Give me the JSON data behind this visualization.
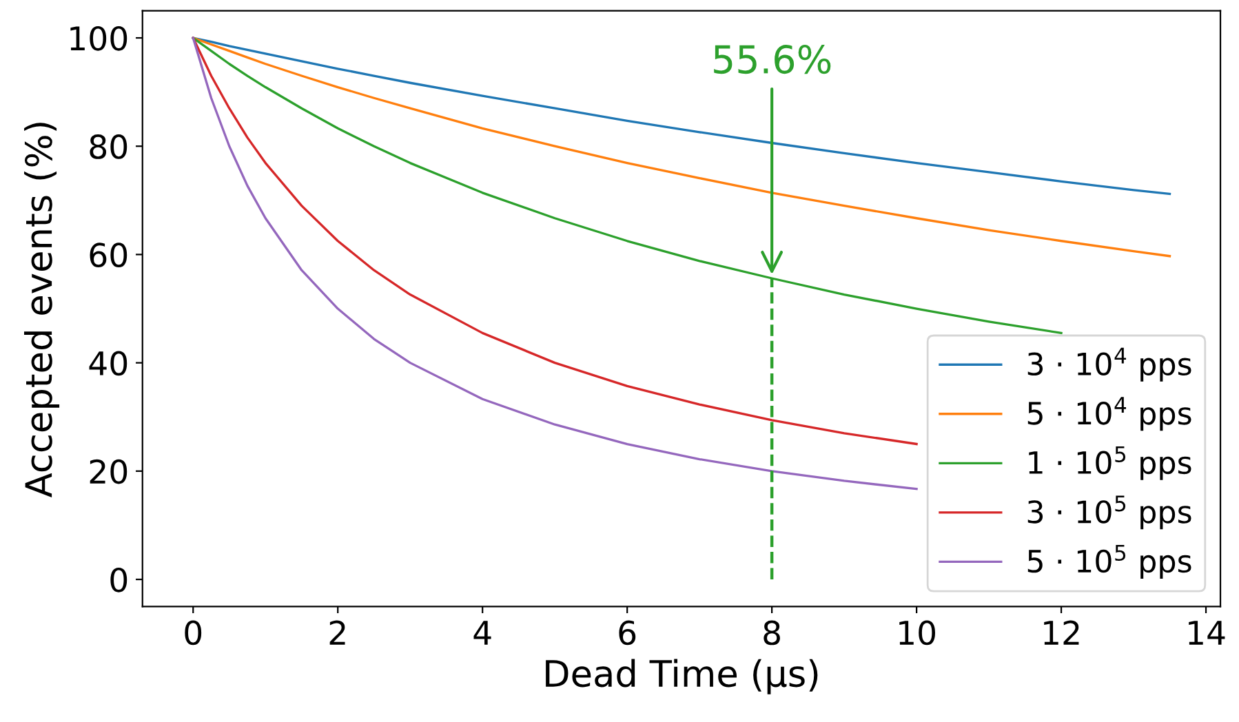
{
  "chart_data": {
    "type": "line",
    "xlabel": "Dead Time (µs)",
    "ylabel": "Accepted events (%)",
    "x": [
      0,
      0.25,
      0.5,
      0.75,
      1,
      1.5,
      2,
      2.5,
      3,
      4,
      5,
      6,
      7,
      8,
      9,
      10,
      11,
      12,
      13,
      13.5
    ],
    "series": [
      {
        "name": "3 · 10$^{4}$ pps",
        "color": "#1f77b4",
        "values": [
          100,
          99.3,
          98.5,
          97.8,
          97.1,
          95.7,
          94.3,
          93.0,
          91.7,
          89.3,
          87.0,
          84.7,
          82.6,
          80.6,
          78.7,
          76.9,
          75.2,
          73.5,
          71.9,
          71.2
        ]
      },
      {
        "name": "5 · 10$^{4}$ pps",
        "color": "#ff7f0e",
        "values": [
          100,
          98.8,
          97.6,
          96.4,
          95.2,
          93.0,
          90.9,
          88.9,
          87.0,
          83.3,
          80.0,
          76.9,
          74.1,
          71.4,
          69.0,
          66.7,
          64.5,
          62.5,
          60.6,
          59.7
        ]
      },
      {
        "name": "1 · 10$^{5}$ pps",
        "color": "#2ca02c",
        "values": [
          100,
          97.6,
          95.2,
          93.0,
          90.9,
          87.0,
          83.3,
          80.0,
          76.9,
          71.4,
          66.7,
          62.5,
          58.8,
          55.6,
          52.6,
          50.0,
          47.6,
          45.5,
          null,
          null
        ]
      },
      {
        "name": "3 · 10$^{5}$ pps",
        "color": "#d62728",
        "values": [
          100,
          93.0,
          87.0,
          81.6,
          76.9,
          69.0,
          62.5,
          57.1,
          52.6,
          45.5,
          40.0,
          35.7,
          32.3,
          29.4,
          27.0,
          25.0,
          null,
          null,
          null,
          null
        ]
      },
      {
        "name": "5 · 10$^{5}$ pps",
        "color": "#9467bd",
        "values": [
          100,
          88.9,
          80.0,
          72.7,
          66.7,
          57.1,
          50.0,
          44.4,
          40.0,
          33.3,
          28.6,
          25.0,
          22.2,
          20.0,
          18.2,
          16.7,
          null,
          null,
          null,
          null
        ]
      },
      {
        "x": [
          8,
          8
        ],
        "color": "#2ca02c",
        "line_style": "dashed",
        "values": [
          0,
          55.6
        ]
      }
    ],
    "annotations": [
      {
        "text": "55.6%",
        "x": 8,
        "y": 55.6
      }
    ],
    "xlim": [
      -0.7,
      14.2
    ],
    "ylim": [
      -5,
      105
    ],
    "xticks": [
      0,
      2,
      4,
      6,
      8,
      10,
      12,
      14
    ],
    "yticks": [
      0,
      20,
      40,
      60,
      80,
      100
    ],
    "legend": "lower right",
    "grid": false
  }
}
